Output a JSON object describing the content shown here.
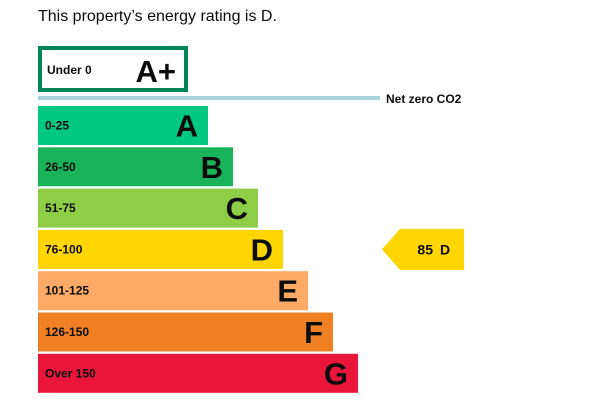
{
  "heading": "This property’s energy rating is D.",
  "chart_data": {
    "type": "bar",
    "title": "",
    "plus_band": {
      "range": "Under 0",
      "letter": "A+",
      "color": "#00855a"
    },
    "net_zero": {
      "label": "Net zero CO2",
      "color": "#a7d4d9"
    },
    "bands": [
      {
        "range": "0-25",
        "letter": "A",
        "color": "#00c781",
        "upper": 25
      },
      {
        "range": "26-50",
        "letter": "B",
        "color": "#19b459",
        "upper": 50
      },
      {
        "range": "51-75",
        "letter": "C",
        "color": "#8dce46",
        "upper": 75
      },
      {
        "range": "76-100",
        "letter": "D",
        "color": "#ffd500",
        "upper": 100
      },
      {
        "range": "101-125",
        "letter": "E",
        "color": "#fcaa65",
        "upper": 125
      },
      {
        "range": "126-150",
        "letter": "F",
        "color": "#ef8023",
        "upper": 150
      },
      {
        "range": "Over 150",
        "letter": "G",
        "color": "#e9153b",
        "upper": 175
      }
    ],
    "current": {
      "value": 85,
      "band": "D",
      "color": "#ffd500"
    }
  }
}
